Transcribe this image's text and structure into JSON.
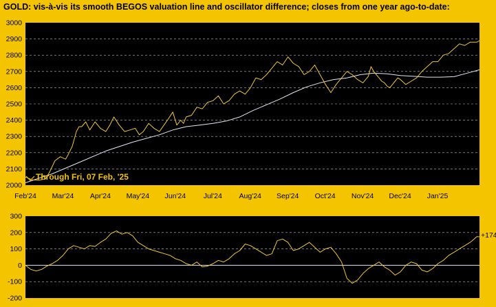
{
  "title": "GOLD:  vis-à-vis its smooth BEGOS valuation line and oscillator difference; closes from one year ago-to-date:",
  "colors": {
    "background": "#f5c400",
    "plot_background": "#000000",
    "price_line": "#f0c838",
    "valuation_line": "#e6e8f4",
    "oscillator_line": "#f0c838",
    "zero_line": "#e6e8f4",
    "grid": "#ffffff",
    "annotation": "#f5c400"
  },
  "chart_data": [
    {
      "type": "line",
      "title": "GOLD:  vis-à-vis its smooth BEGOS valuation line and oscillator difference; closes from one year ago-to-date:",
      "annotation": "Through Fri, 07 Feb, '25",
      "x_tick_labels": [
        "Feb'24",
        "Mar'24",
        "Apr'24",
        "May'24",
        "Jun'24",
        "Jul'24",
        "Aug'24",
        "Sep'24",
        "Oct'24",
        "Nov'24",
        "Dec'24",
        "Jan'25"
      ],
      "y_ticks": [
        2000,
        2100,
        2200,
        2300,
        2400,
        2500,
        2600,
        2700,
        2800,
        2900,
        3000
      ],
      "ylim": [
        2000,
        3000
      ],
      "grid": "horizontal dashed",
      "series": [
        {
          "role": "price",
          "x": [
            0,
            5,
            10,
            15,
            18,
            22,
            26,
            30,
            32,
            35,
            38,
            40,
            42,
            45,
            48,
            52,
            56,
            60,
            63,
            66,
            70,
            74,
            78,
            82,
            85,
            88,
            92,
            96,
            100,
            103,
            106,
            110,
            113,
            116,
            118,
            120,
            124,
            128,
            132,
            136,
            140,
            144,
            148,
            150,
            152,
            156,
            160,
            164,
            168,
            172,
            176,
            180,
            184,
            188,
            192,
            196,
            200,
            204,
            208,
            212,
            216,
            220,
            224,
            228,
            232,
            236,
            240,
            244,
            248,
            252,
            256,
            258,
            260,
            262,
            264,
            266,
            268,
            270,
            272,
            274,
            276,
            278,
            280,
            284,
            288,
            292,
            296,
            300,
            304,
            308,
            312,
            316,
            320,
            324,
            328,
            332,
            335,
            337,
            339
          ],
          "y": [
            2050,
            2033,
            2030,
            2040,
            2080,
            2150,
            2175,
            2160,
            2190,
            2240,
            2330,
            2360,
            2360,
            2390,
            2340,
            2390,
            2350,
            2330,
            2370,
            2420,
            2370,
            2330,
            2340,
            2350,
            2310,
            2330,
            2380,
            2350,
            2330,
            2365,
            2400,
            2450,
            2370,
            2400,
            2380,
            2420,
            2430,
            2480,
            2470,
            2510,
            2520,
            2550,
            2500,
            2510,
            2520,
            2560,
            2580,
            2560,
            2600,
            2660,
            2650,
            2680,
            2720,
            2760,
            2740,
            2790,
            2750,
            2730,
            2680,
            2700,
            2740,
            2680,
            2620,
            2570,
            2620,
            2660,
            2700,
            2680,
            2650,
            2630,
            2670,
            2730,
            2700,
            2680,
            2660,
            2640,
            2630,
            2610,
            2600,
            2620,
            2640,
            2660,
            2650,
            2620,
            2640,
            2660,
            2700,
            2730,
            2760,
            2760,
            2800,
            2810,
            2840,
            2870,
            2860,
            2880,
            2880,
            2880,
            2890
          ]
        },
        {
          "role": "valuation",
          "x": [
            0,
            20,
            40,
            60,
            80,
            100,
            110,
            115,
            120,
            125,
            130,
            135,
            140,
            150,
            160,
            170,
            180,
            190,
            200,
            210,
            220,
            230,
            240,
            250,
            260,
            270,
            280,
            290,
            300,
            310,
            320,
            330,
            339
          ],
          "y": [
            2015,
            2070,
            2140,
            2210,
            2265,
            2310,
            2340,
            2350,
            2360,
            2365,
            2370,
            2375,
            2380,
            2395,
            2420,
            2460,
            2495,
            2530,
            2570,
            2605,
            2630,
            2650,
            2660,
            2680,
            2690,
            2685,
            2675,
            2670,
            2665,
            2665,
            2668,
            2690,
            2710
          ]
        }
      ]
    },
    {
      "type": "line",
      "title": "",
      "y_ticks": [
        -200,
        -100,
        0,
        100,
        200,
        300
      ],
      "ylim": [
        -200,
        300
      ],
      "grid": "horizontal dashed",
      "end_label": "+174",
      "series": [
        {
          "role": "oscillator",
          "x": [
            0,
            4,
            8,
            12,
            16,
            20,
            24,
            28,
            32,
            36,
            40,
            44,
            48,
            52,
            56,
            60,
            64,
            68,
            72,
            76,
            80,
            84,
            88,
            92,
            96,
            100,
            104,
            108,
            112,
            116,
            120,
            124,
            128,
            132,
            136,
            140,
            144,
            148,
            152,
            156,
            160,
            164,
            168,
            172,
            176,
            180,
            184,
            188,
            192,
            196,
            200,
            204,
            208,
            212,
            216,
            220,
            224,
            228,
            232,
            236,
            240,
            244,
            248,
            252,
            256,
            260,
            264,
            268,
            272,
            276,
            280,
            284,
            288,
            292,
            296,
            300,
            304,
            308,
            312,
            316,
            320,
            324,
            328,
            332,
            335,
            337,
            339
          ],
          "y": [
            0,
            -25,
            -35,
            -25,
            -5,
            10,
            30,
            60,
            100,
            120,
            110,
            100,
            120,
            115,
            140,
            160,
            195,
            210,
            190,
            200,
            180,
            140,
            120,
            100,
            90,
            80,
            70,
            60,
            40,
            30,
            10,
            0,
            20,
            -10,
            -5,
            10,
            30,
            20,
            40,
            70,
            90,
            130,
            120,
            100,
            80,
            60,
            70,
            150,
            160,
            140,
            90,
            100,
            120,
            140,
            110,
            80,
            100,
            110,
            70,
            20,
            -80,
            -110,
            -90,
            -50,
            -20,
            0,
            20,
            -10,
            -30,
            -60,
            -40,
            0,
            20,
            10,
            -30,
            -40,
            -20,
            10,
            30,
            60,
            80,
            100,
            120,
            140,
            160,
            175,
            174
          ]
        }
      ]
    }
  ]
}
